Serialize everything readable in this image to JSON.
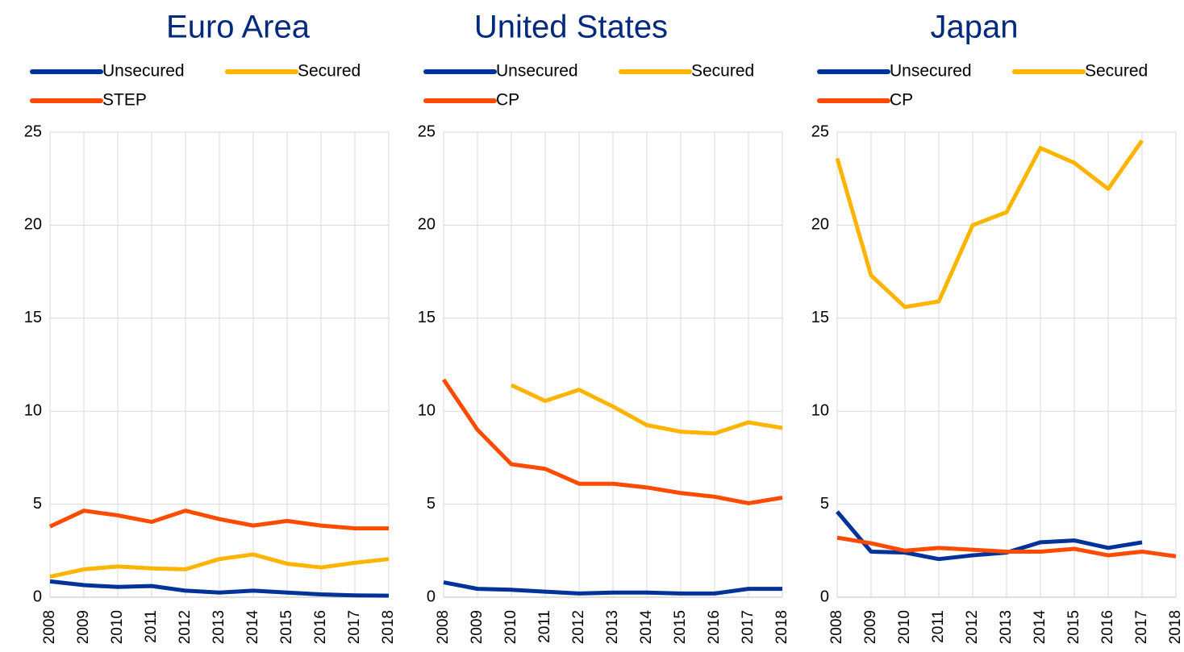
{
  "chart_data": [
    {
      "type": "line",
      "title": "Euro Area",
      "categories": [
        "2008",
        "2009",
        "2010",
        "2011",
        "2012",
        "2013",
        "2014",
        "2015",
        "2016",
        "2017",
        "2018"
      ],
      "series": [
        {
          "name": "Unsecured",
          "color": "#003399",
          "values": [
            0.85,
            0.65,
            0.55,
            0.6,
            0.35,
            0.25,
            0.35,
            0.25,
            0.15,
            0.1,
            0.08
          ]
        },
        {
          "name": "Secured",
          "color": "#ffb400",
          "values": [
            1.1,
            1.5,
            1.65,
            1.55,
            1.5,
            2.05,
            2.3,
            1.8,
            1.6,
            1.85,
            2.05
          ]
        },
        {
          "name": "STEP",
          "color": "#ff4b00",
          "values": [
            3.8,
            4.65,
            4.4,
            4.05,
            4.65,
            4.2,
            3.85,
            4.1,
            3.85,
            3.7,
            3.7
          ]
        }
      ],
      "ylim": [
        0,
        25
      ],
      "yticks": [
        0,
        5,
        10,
        15,
        20,
        25
      ],
      "grid": true
    },
    {
      "type": "line",
      "title": "United States",
      "categories": [
        "2008",
        "2009",
        "2010",
        "2011",
        "2012",
        "2013",
        "2014",
        "2015",
        "2016",
        "2017",
        "2018"
      ],
      "series": [
        {
          "name": "Unsecured",
          "color": "#003399",
          "values": [
            0.8,
            0.45,
            0.4,
            0.3,
            0.2,
            0.25,
            0.25,
            0.2,
            0.2,
            0.45,
            0.45
          ]
        },
        {
          "name": "Secured",
          "color": "#ffb400",
          "values": [
            null,
            null,
            11.4,
            10.55,
            11.15,
            10.25,
            9.25,
            8.9,
            8.8,
            9.4,
            9.1
          ]
        },
        {
          "name": "CP",
          "color": "#ff4b00",
          "values": [
            11.7,
            9.0,
            7.15,
            6.9,
            6.1,
            6.1,
            5.9,
            5.6,
            5.4,
            5.05,
            5.35
          ]
        }
      ],
      "ylim": [
        0,
        25
      ],
      "yticks": [
        0,
        5,
        10,
        15,
        20,
        25
      ],
      "grid": true
    },
    {
      "type": "line",
      "title": "Japan",
      "categories": [
        "2008",
        "2009",
        "2010",
        "2011",
        "2012",
        "2013",
        "2014",
        "2015",
        "2016",
        "2017",
        "2018"
      ],
      "series": [
        {
          "name": "Unsecured",
          "color": "#003399",
          "values": [
            4.6,
            2.45,
            2.4,
            2.05,
            2.25,
            2.4,
            2.95,
            3.05,
            2.65,
            2.95,
            null
          ]
        },
        {
          "name": "Secured",
          "color": "#ffb400",
          "values": [
            23.6,
            17.3,
            15.6,
            15.9,
            20.0,
            20.7,
            24.15,
            23.35,
            21.95,
            24.55,
            null
          ]
        },
        {
          "name": "CP",
          "color": "#ff4b00",
          "values": [
            3.2,
            2.9,
            2.5,
            2.65,
            2.55,
            2.45,
            2.45,
            2.6,
            2.25,
            2.45,
            2.2
          ]
        }
      ],
      "ylim": [
        0,
        25
      ],
      "yticks": [
        0,
        5,
        10,
        15,
        20,
        25
      ],
      "grid": true
    }
  ]
}
